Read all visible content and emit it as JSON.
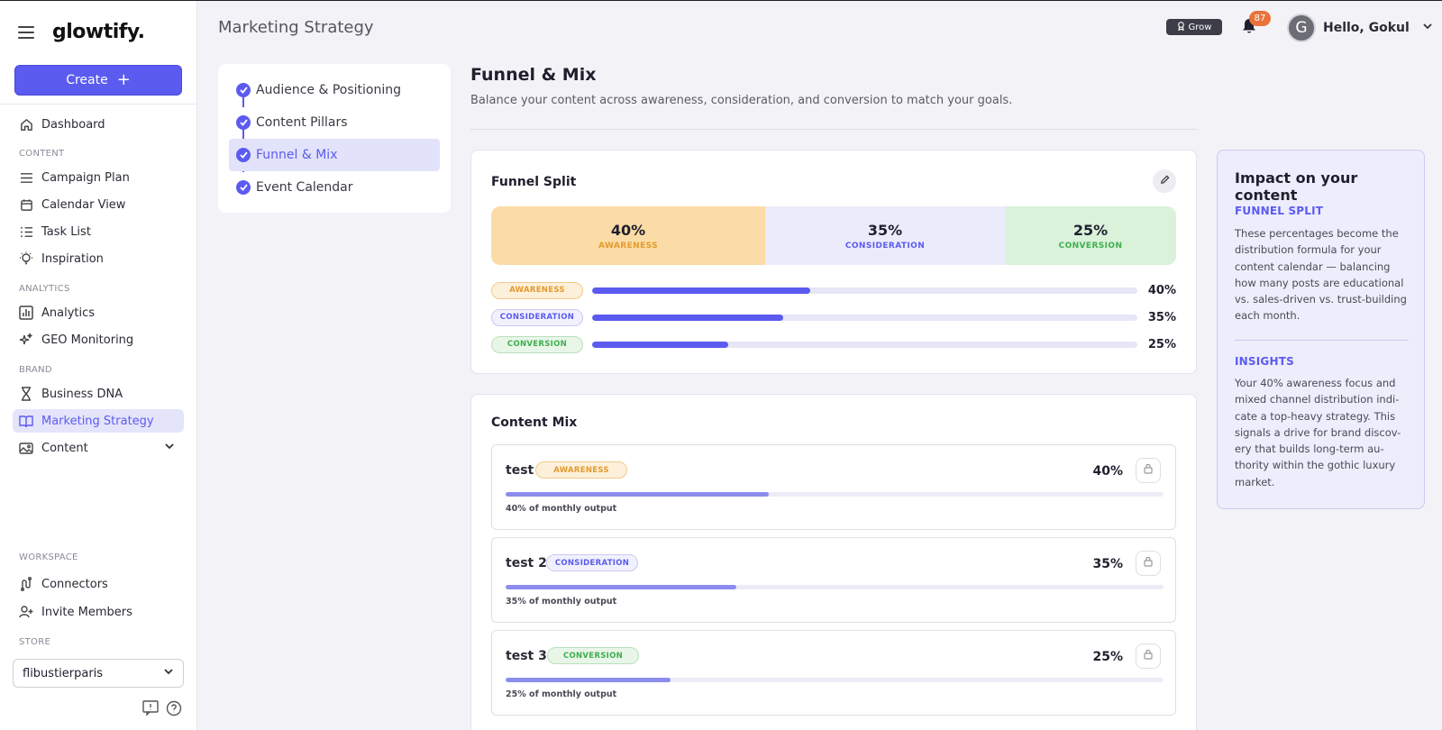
{
  "app": {
    "logo": "glowtify."
  },
  "sidebar": {
    "create_label": "Create",
    "dashboard": "Dashboard",
    "section_content": "CONTENT",
    "campaign_plan": "Campaign Plan",
    "calendar_view": "Calendar View",
    "task_list": "Task List",
    "inspiration": "Inspiration",
    "section_analytics": "ANALYTICS",
    "analytics": "Analytics",
    "geo_monitoring": "GEO Monitoring",
    "section_brand": "BRAND",
    "business_dna": "Business DNA",
    "marketing_strategy": "Marketing Strategy",
    "content": "Content",
    "section_workspace": "WORKSPACE",
    "connectors": "Connectors",
    "invite_members": "Invite Members",
    "section_store": "STORE",
    "store_value": "flibustierparis"
  },
  "header": {
    "page_title": "Marketing Strategy",
    "grow_label": "Grow",
    "notif_count": "87",
    "avatar_letter": "G",
    "greeting": "Hello, Gokul"
  },
  "steps": [
    {
      "label": "Audience & Positioning"
    },
    {
      "label": "Content Pillars"
    },
    {
      "label": "Funnel & Mix"
    },
    {
      "label": "Event Calendar"
    }
  ],
  "main": {
    "title": "Funnel & Mix",
    "subtitle": "Balance your content across awareness, consideration, and conversion to match your goals."
  },
  "funnel_split": {
    "title": "Funnel Split",
    "segments": [
      {
        "pct": "40%",
        "label": "AWARENESS",
        "value": 40
      },
      {
        "pct": "35%",
        "label": "CONSIDERATION",
        "value": 35
      },
      {
        "pct": "25%",
        "label": "CONVERSION",
        "value": 25
      }
    ]
  },
  "content_mix": {
    "title": "Content Mix",
    "items": [
      {
        "name": "test",
        "tag": "AWARENESS",
        "pct": "40%",
        "value": 40,
        "note": "40% of monthly output"
      },
      {
        "name": "test 2",
        "tag": "CONSIDERATION",
        "pct": "35%",
        "value": 35,
        "note": "35% of monthly output"
      },
      {
        "name": "test 3",
        "tag": "CONVERSION",
        "pct": "25%",
        "value": 25,
        "note": "25% of monthly output"
      }
    ]
  },
  "impact": {
    "title": "Impact on your content",
    "h1": "FUNNEL SPLIT",
    "p1": "These percentages become the distribution formula for your content calendar — balancing how many posts are educational vs. sales-driven vs. trust-building each month.",
    "h2": "INSIGHTS",
    "p2": "Your 40% awareness focus and mixed channel distribution indi-cate a top-heavy strategy. This signals a drive for brand discov-ery that builds long-term au-thority within the gothic luxury market."
  },
  "colors": {
    "accent": "#5b5bf0",
    "awareness": "#fcdca6",
    "consideration": "#ebebfb",
    "conversion": "#d9f2d9"
  }
}
